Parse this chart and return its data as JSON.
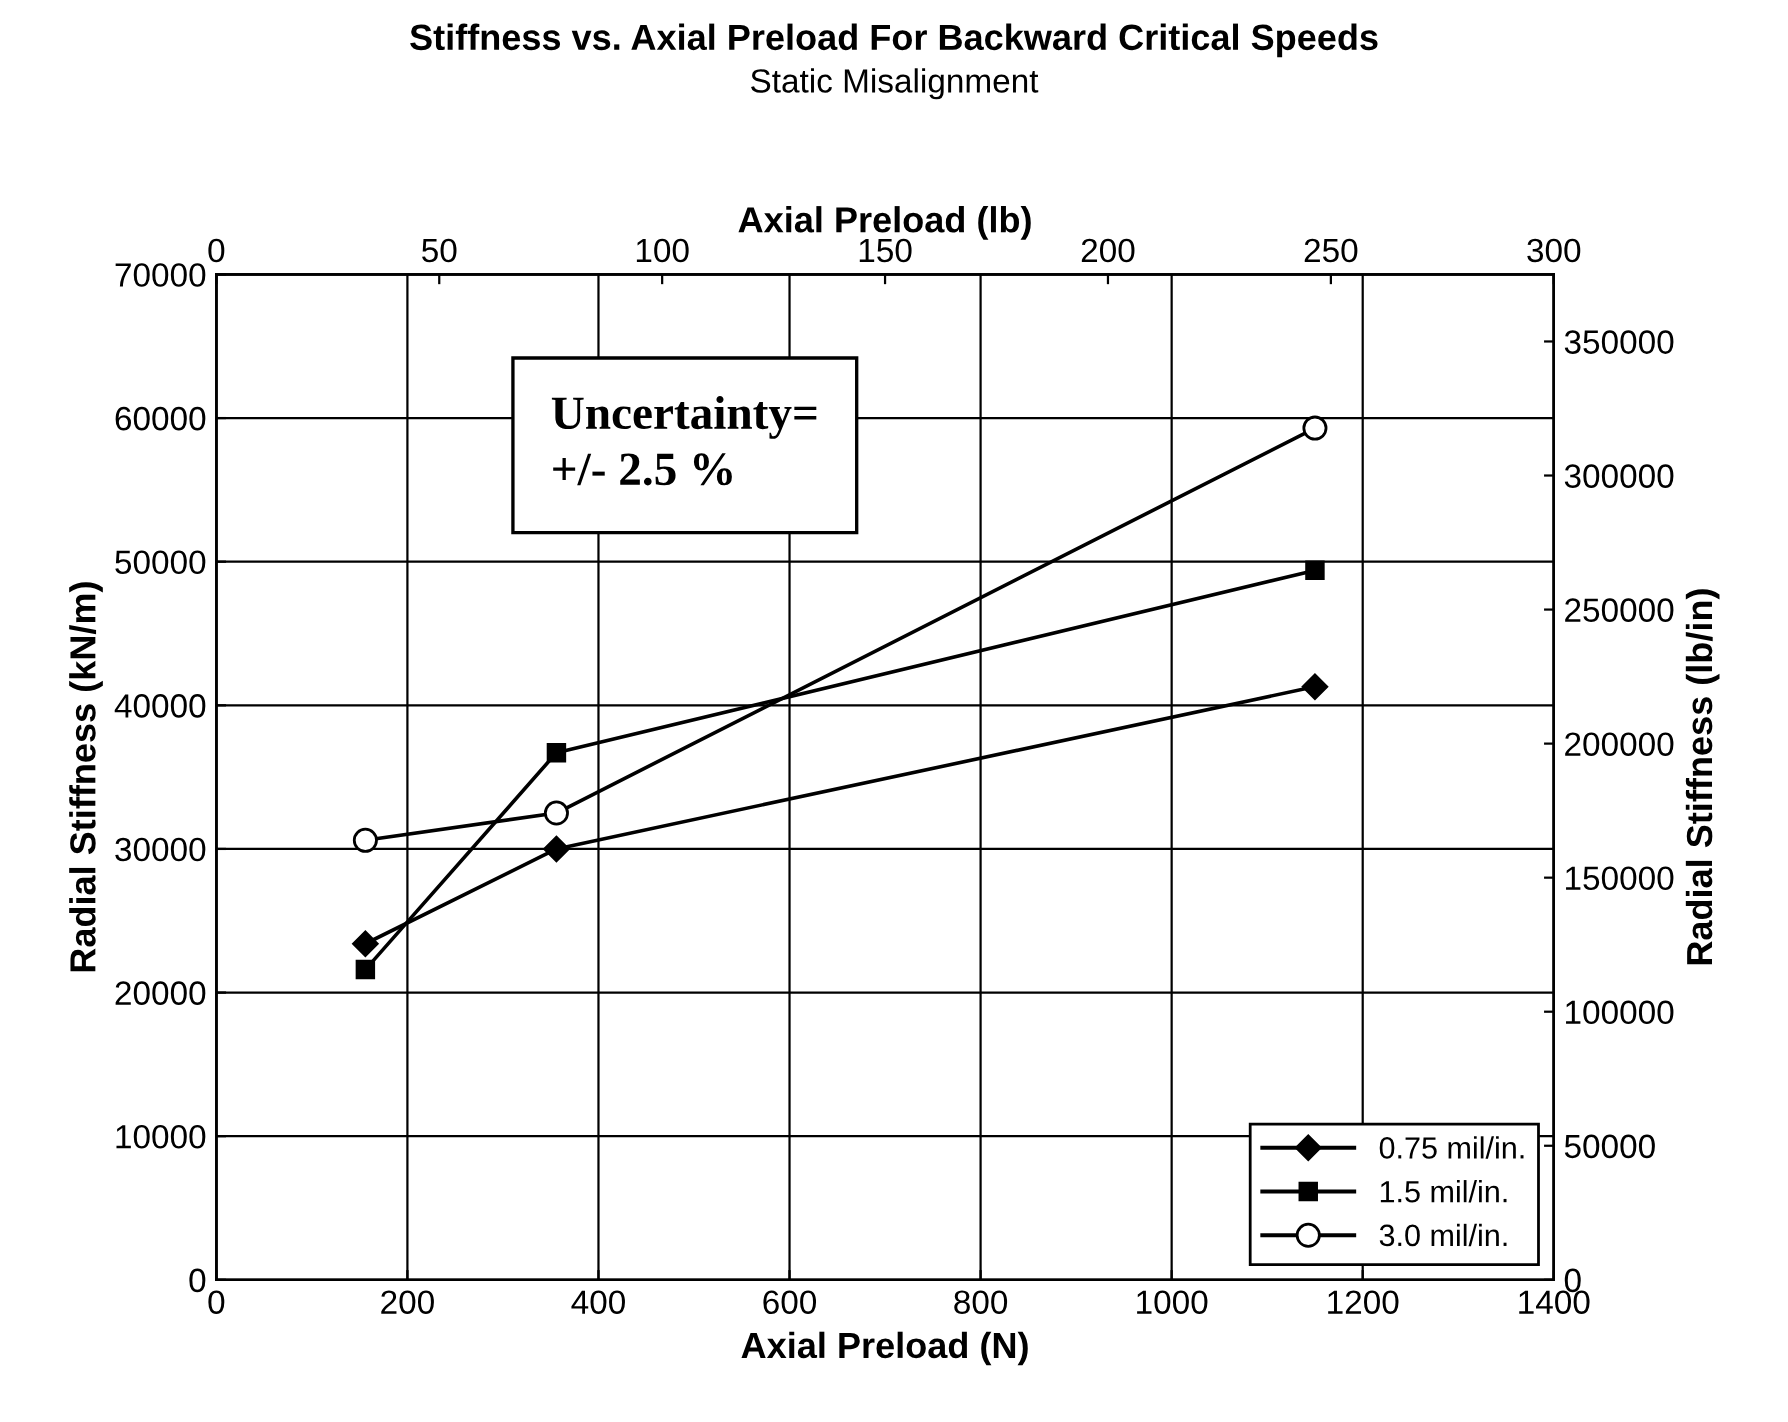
{
  "chart_data": {
    "type": "line",
    "title": "Stiffness vs. Axial Preload For Backward Critical Speeds",
    "subtitle": "Static Misalignment",
    "xlabel": "Axial Preload (N)",
    "ylabel": "Radial Stiffness (kN/m)",
    "y2label": "Radial Stiffness (lb/in)",
    "x2label": "Axial Preload (lb)",
    "x": [
      156,
      356,
      1150
    ],
    "series": [
      {
        "name": "0.75 mil/in.",
        "color": "#000000",
        "marker": "diamond",
        "values": [
          23400,
          30000,
          41300
        ]
      },
      {
        "name": "1.5 mil/in.",
        "color": "#000000",
        "marker": "square",
        "values": [
          21600,
          36700,
          49400
        ]
      },
      {
        "name": "3.0 mil/in.",
        "color": "#000000",
        "marker": "circle",
        "values": [
          30600,
          32500,
          59300
        ]
      }
    ],
    "xlim": [
      0,
      1400
    ],
    "xticks": [
      0,
      200,
      400,
      600,
      800,
      1000,
      1200,
      1400
    ],
    "ylim": [
      0,
      70000
    ],
    "yticks": [
      0,
      10000,
      20000,
      30000,
      40000,
      50000,
      60000,
      70000
    ],
    "x2lim": [
      0,
      300
    ],
    "x2ticks": [
      0,
      50,
      100,
      150,
      200,
      250,
      300
    ],
    "y2lim": [
      0,
      375000
    ],
    "y2ticks": [
      0,
      50000,
      100000,
      150000,
      200000,
      250000,
      300000,
      350000
    ],
    "annotations": [
      "Uncertainty=\n+/- 2.5 %"
    ],
    "grid": true,
    "legend": "bottom right",
    "line_style": "solid"
  }
}
